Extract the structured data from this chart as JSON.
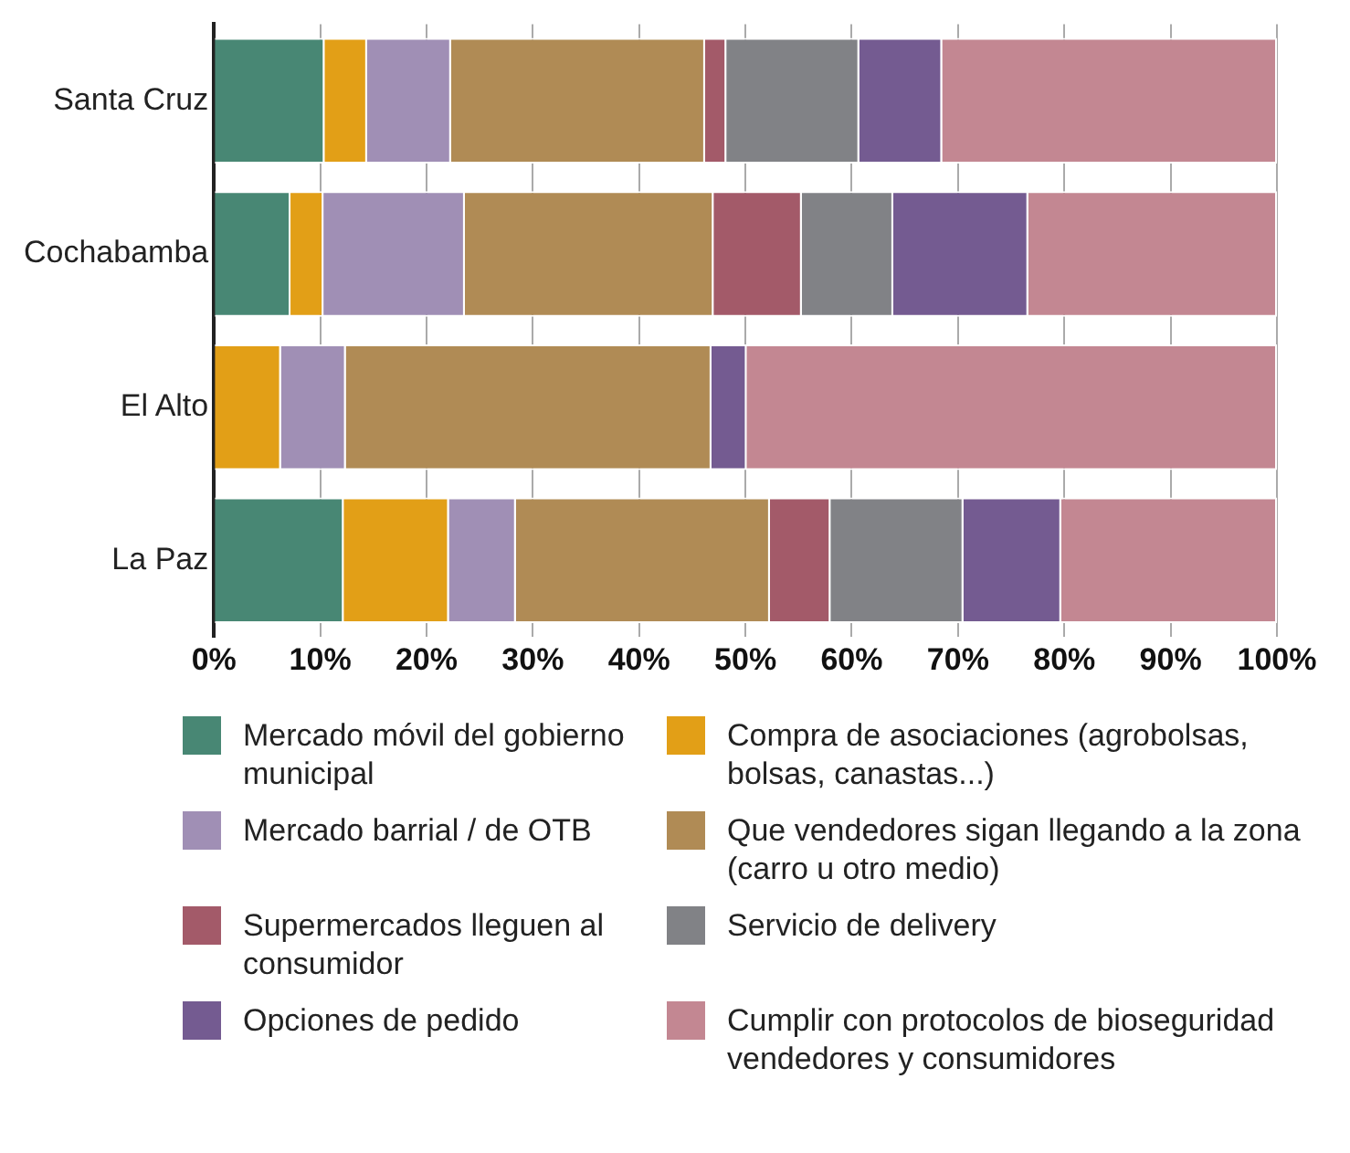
{
  "chart_data": {
    "type": "bar",
    "orientation": "horizontal",
    "stacked": true,
    "categories": [
      "Santa Cruz",
      "Cochabamba",
      "El Alto",
      "La Paz"
    ],
    "series": [
      {
        "name": "Mercado móvil del gobierno municipal",
        "color": "#488774",
        "values": [
          10.4,
          7.2,
          0,
          12.2
        ]
      },
      {
        "name": "Compra de asociaciones (agrobolsas, bolsas, canastas...)",
        "color": "#e29f17",
        "values": [
          4.0,
          3.1,
          6.3,
          9.9
        ]
      },
      {
        "name": "Mercado barrial / de OTB",
        "color": "#a08fb5",
        "values": [
          7.9,
          13.3,
          6.1,
          6.3
        ]
      },
      {
        "name": "Que vendedores sigan llegando a la zona (carro u otro medio)",
        "color": "#b08b55",
        "values": [
          23.9,
          23.4,
          34.4,
          23.9
        ]
      },
      {
        "name": "Supermercados lleguen al consumidor",
        "color": "#a35a69",
        "values": [
          2.0,
          8.3,
          0,
          5.7
        ]
      },
      {
        "name": "Servicio de delivery",
        "color": "#818286",
        "values": [
          12.5,
          8.6,
          0,
          12.5
        ]
      },
      {
        "name": "Opciones de pedido",
        "color": "#745b91",
        "values": [
          7.8,
          12.7,
          3.3,
          9.2
        ]
      },
      {
        "name": "Cumplir con protocolos de bioseguridad vendedores y consumidores",
        "color": "#c38792",
        "values": [
          31.5,
          23.4,
          49.9,
          20.3
        ]
      }
    ],
    "xlim": [
      0,
      100
    ],
    "xticks": [
      {
        "value": 0,
        "label": "0%"
      },
      {
        "value": 10,
        "label": "10%"
      },
      {
        "value": 20,
        "label": "20%"
      },
      {
        "value": 30,
        "label": "30%"
      },
      {
        "value": 40,
        "label": "40%"
      },
      {
        "value": 50,
        "label": "50%"
      },
      {
        "value": 60,
        "label": "60%"
      },
      {
        "value": 70,
        "label": "70%"
      },
      {
        "value": 80,
        "label": "80%"
      },
      {
        "value": 90,
        "label": "90%"
      },
      {
        "value": 100,
        "label": "100%"
      }
    ],
    "grid": "x",
    "legend": "bottom"
  }
}
